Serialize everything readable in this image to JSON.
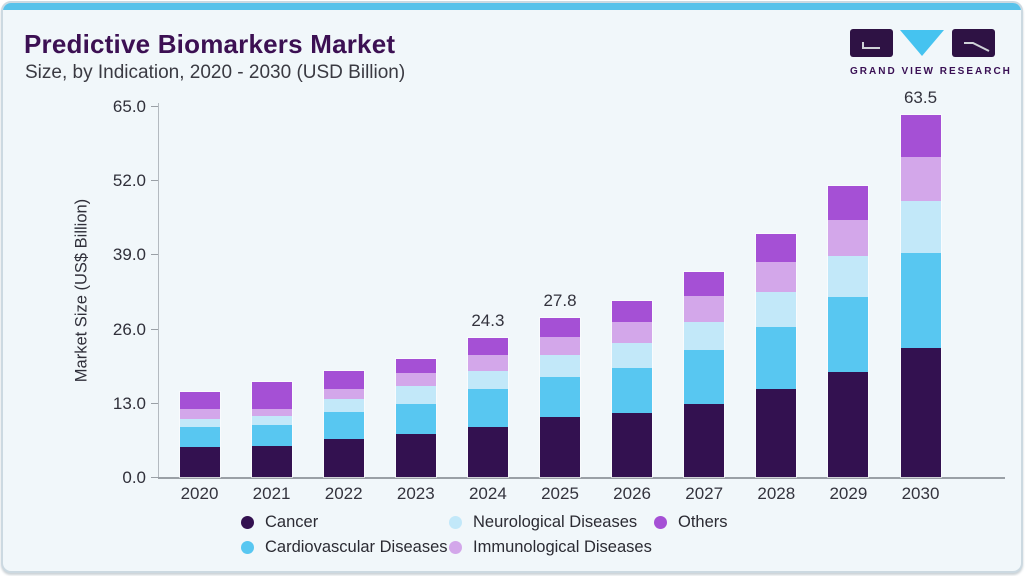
{
  "header": {
    "title": "Predictive Biomarkers Market",
    "subtitle": "Size, by Indication, 2020 - 2030 (USD Billion)"
  },
  "logo": {
    "text": "GRAND VIEW RESEARCH",
    "dark_color": "#2e1244",
    "cyan_color": "#45c3f0"
  },
  "chart_data": {
    "type": "bar",
    "stacked": true,
    "title": "Predictive Biomarkers Market Size, by Indication, 2020 - 2030 (USD Billion)",
    "xlabel": "",
    "ylabel": "Market Size (US$ Billion)",
    "ylim": [
      0,
      65
    ],
    "grid": false,
    "legend_position": "bottom",
    "yticks": [
      0.0,
      13.0,
      26.0,
      39.0,
      52.0,
      65.0
    ],
    "ytick_labels": [
      "0.0",
      "13.0",
      "26.0",
      "39.0",
      "52.0",
      "65.0"
    ],
    "categories": [
      "2020",
      "2021",
      "2022",
      "2023",
      "2024",
      "2025",
      "2026",
      "2027",
      "2028",
      "2029",
      "2030"
    ],
    "series": [
      {
        "name": "Cancer",
        "color": "#331150",
        "values": [
          5.2,
          5.4,
          6.6,
          7.6,
          8.8,
          10.5,
          11.2,
          12.8,
          15.4,
          18.4,
          22.6
        ]
      },
      {
        "name": "Cardiovascular Diseases",
        "color": "#58c7f1",
        "values": [
          3.5,
          3.7,
          4.7,
          5.2,
          6.6,
          7.1,
          7.9,
          9.4,
          10.9,
          13.1,
          16.7
        ]
      },
      {
        "name": "Neurological Diseases",
        "color": "#c2e8f9",
        "values": [
          1.4,
          1.5,
          2.3,
          3.1,
          3.1,
          3.8,
          4.4,
          5.0,
          6.1,
          7.3,
          9.1
        ]
      },
      {
        "name": "Immunological Diseases",
        "color": "#d3a7ea",
        "values": [
          1.8,
          1.4,
          1.9,
          2.3,
          2.9,
          3.2,
          3.7,
          4.5,
          5.2,
          6.3,
          7.6
        ]
      },
      {
        "name": "Others",
        "color": "#a550d5",
        "values": [
          3.0,
          4.6,
          3.0,
          2.5,
          2.9,
          3.2,
          3.6,
          4.3,
          4.9,
          5.9,
          7.5
        ]
      }
    ],
    "totals": [
      14.9,
      16.6,
      18.5,
      20.7,
      24.3,
      27.8,
      30.8,
      36.0,
      42.5,
      51.0,
      63.5
    ],
    "bar_labels": {
      "2024": "24.3",
      "2025": "27.8",
      "2030": "63.5"
    },
    "legend_rows": [
      [
        "Cancer",
        "Neurological Diseases",
        "Others"
      ],
      [
        "Cardiovascular Diseases",
        "Immunological Diseases"
      ]
    ]
  }
}
